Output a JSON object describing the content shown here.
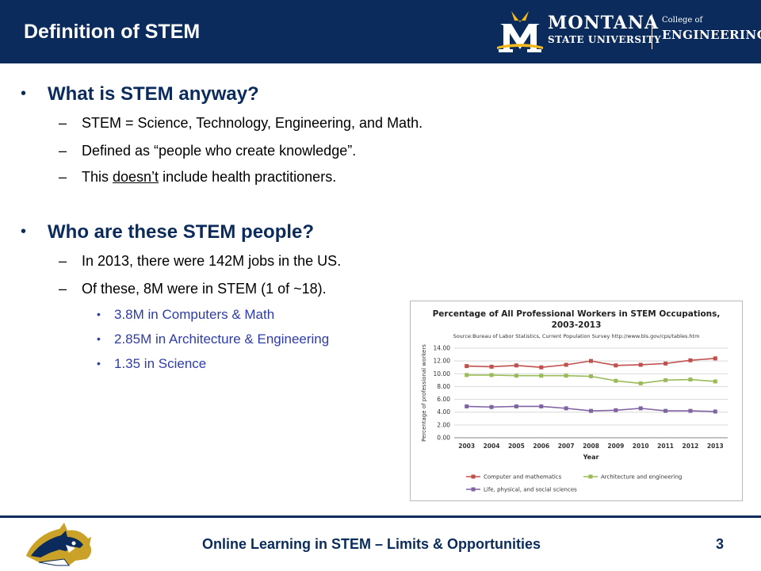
{
  "header": {
    "title": "Definition of STEM",
    "logo_line1": "MONTANA",
    "logo_line2": "STATE UNIVERSITY",
    "logo_college_small": "College of",
    "logo_college_big": "ENGINEERING"
  },
  "content": {
    "bullet_char": "•",
    "dash_char": "–",
    "section1": {
      "heading": "What is STEM anyway?",
      "items": [
        "STEM = Science, Technology, Engineering, and Math.",
        "Defined as “people who create knowledge”."
      ],
      "item3_pre": "This ",
      "item3_underlined": "doesn’t",
      "item3_post": " include health practitioners."
    },
    "section2": {
      "heading": "Who are these STEM people?",
      "items": [
        "In 2013, there were 142M jobs in the US.",
        "Of these, 8M were in STEM (1 of ~18)."
      ],
      "subitems": [
        "3.8M in Computers & Math",
        "2.85M in Architecture & Engineering",
        "1.35 in Science"
      ]
    }
  },
  "chart_data": {
    "type": "line",
    "title": "Percentage of All Professional Workers in STEM Occupations, 2003-2013",
    "title_line1": "Percentage of All Professional Workers in STEM Occupations,",
    "title_line2": "2003-2013",
    "source": "Source:Bureau of Labor Statistics, Current Population Survey http://www.bls.gov/cps/tables.htm",
    "xlabel": "Year",
    "ylabel": "Percentage of professional workers",
    "categories": [
      "2003",
      "2004",
      "2005",
      "2006",
      "2007",
      "2008",
      "2009",
      "2010",
      "2011",
      "2012",
      "2013"
    ],
    "ylim": [
      0,
      14
    ],
    "yticks": [
      "0.00",
      "2.00",
      "4.00",
      "6.00",
      "8.00",
      "10.00",
      "12.00",
      "14.00"
    ],
    "grid": true,
    "legend_position": "bottom",
    "series": [
      {
        "name": "Computer and mathematics",
        "color": "#c0504d",
        "marker": "square",
        "values": [
          11.2,
          11.1,
          11.3,
          11.0,
          11.4,
          12.0,
          11.3,
          11.4,
          11.6,
          12.1,
          12.4
        ]
      },
      {
        "name": "Architecture and engineering",
        "color": "#9bbb59",
        "marker": "square",
        "values": [
          9.8,
          9.8,
          9.7,
          9.7,
          9.7,
          9.6,
          8.9,
          8.5,
          9.0,
          9.1,
          8.8
        ]
      },
      {
        "name": "Life, physical, and social sciences",
        "color": "#8064a2",
        "marker": "square",
        "values": [
          4.9,
          4.8,
          4.9,
          4.9,
          4.6,
          4.2,
          4.3,
          4.6,
          4.2,
          4.2,
          4.1
        ]
      }
    ]
  },
  "footer": {
    "title": "Online Learning in STEM – Limits & Opportunities",
    "page_number": "3"
  }
}
